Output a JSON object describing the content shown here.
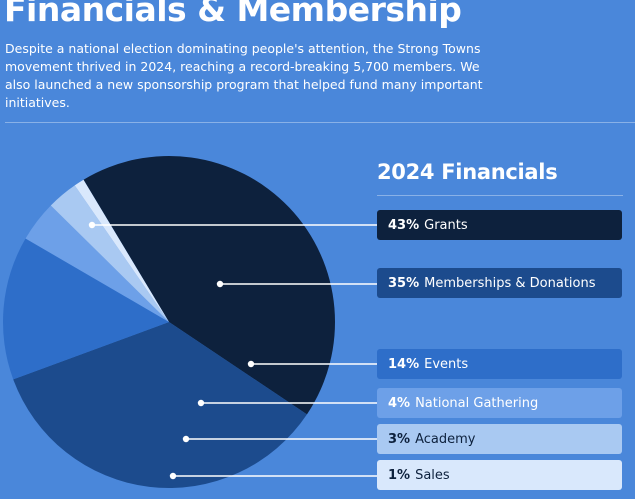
{
  "page": {
    "title": "Financials & Membership",
    "intro": "Despite a national election dominating people's attention, the Strong Towns movement thrived in 2024, reaching a record-breaking 5,700 members. We also launched a new sponsorship program that helped fund many important initiatives."
  },
  "chart_data": {
    "type": "pie",
    "title": "2024 Financials",
    "slices": [
      {
        "label": "Grants",
        "pct": "43%",
        "value": 43,
        "color": "#0d213d",
        "text_color": "#ffffff"
      },
      {
        "label": "Memberships & Donations",
        "pct": "35%",
        "value": 35,
        "color": "#1c4b8d",
        "text_color": "#ffffff"
      },
      {
        "label": "Events",
        "pct": "14%",
        "value": 14,
        "color": "#2e6ec9",
        "text_color": "#ffffff"
      },
      {
        "label": "National Gathering",
        "pct": "4%",
        "value": 4,
        "color": "#6da0e8",
        "text_color": "#ffffff"
      },
      {
        "label": "Academy",
        "pct": "3%",
        "value": 3,
        "color": "#a9c9f2",
        "text_color": "#0d213d"
      },
      {
        "label": "Sales",
        "pct": "1%",
        "value": 1,
        "color": "#d9e8fc",
        "text_color": "#0d213d"
      }
    ]
  }
}
